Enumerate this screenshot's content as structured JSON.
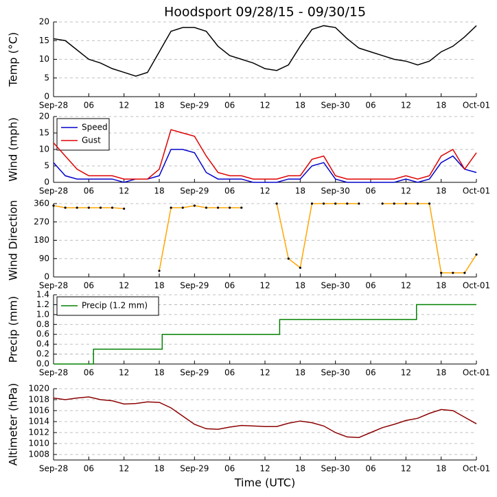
{
  "chart_data": [
    {
      "type": "line",
      "title": "Hoodsport 09/28/15 - 09/30/15",
      "ylabel": "Temp (°C)",
      "x": [
        0,
        2,
        4,
        6,
        8,
        10,
        12,
        14,
        16,
        18,
        20,
        22,
        24,
        26,
        28,
        30,
        32,
        34,
        36,
        38,
        40,
        42,
        44,
        46,
        48,
        50,
        52,
        54,
        56,
        58,
        60,
        62,
        64,
        66,
        68,
        70,
        72
      ],
      "xlim": [
        0,
        72
      ],
      "xticks": [
        {
          "value": 0,
          "label": "Sep-28"
        },
        {
          "value": 6,
          "label": "06"
        },
        12,
        18,
        {
          "value": 24,
          "label": "Sep-29"
        },
        {
          "value": 30,
          "label": "06"
        },
        {
          "value": 36,
          "label": "12"
        },
        {
          "value": 42,
          "label": "18"
        },
        {
          "value": 48,
          "label": "Sep-30"
        },
        {
          "value": 54,
          "label": "06"
        },
        {
          "value": 60,
          "label": "12"
        },
        {
          "value": 66,
          "label": "18"
        },
        {
          "value": 72,
          "label": "Oct-01"
        }
      ],
      "ylim": [
        0,
        20
      ],
      "yticks": [
        0,
        5,
        10,
        15,
        20
      ],
      "grid": true,
      "series": [
        {
          "name": "Temp",
          "color": "#000000",
          "values": [
            15.5,
            15,
            12.5,
            10,
            9,
            7.5,
            6.5,
            5.5,
            6.5,
            12,
            17.5,
            18.5,
            18.5,
            17.5,
            13.5,
            11,
            10,
            9,
            7.5,
            7,
            8.5,
            13.5,
            18,
            19,
            18.5,
            15.5,
            13,
            12,
            11,
            10,
            9.5,
            8.5,
            9.5,
            12,
            13.5,
            16,
            19
          ]
        }
      ]
    },
    {
      "type": "line",
      "ylabel": "Wind (mph)",
      "legend": "upper left",
      "x": [
        0,
        2,
        4,
        6,
        8,
        10,
        12,
        14,
        16,
        18,
        20,
        22,
        24,
        26,
        28,
        30,
        32,
        34,
        36,
        38,
        40,
        42,
        44,
        46,
        48,
        50,
        52,
        54,
        56,
        58,
        60,
        62,
        64,
        66,
        68,
        70,
        72
      ],
      "xlim": [
        0,
        72
      ],
      "xticks": [
        {
          "value": 0,
          "label": "Sep-28"
        },
        {
          "value": 6,
          "label": "06"
        },
        12,
        18,
        {
          "value": 24,
          "label": "Sep-29"
        },
        {
          "value": 30,
          "label": "06"
        },
        {
          "value": 36,
          "label": "12"
        },
        {
          "value": 42,
          "label": "18"
        },
        {
          "value": 48,
          "label": "Sep-30"
        },
        {
          "value": 54,
          "label": "06"
        },
        {
          "value": 60,
          "label": "12"
        },
        {
          "value": 66,
          "label": "18"
        },
        {
          "value": 72,
          "label": "Oct-01"
        }
      ],
      "ylim": [
        0,
        20
      ],
      "yticks": [
        0,
        5,
        10,
        15,
        20
      ],
      "grid": true,
      "series": [
        {
          "name": "Speed",
          "color": "#0000cc",
          "values": [
            6,
            2,
            1,
            1,
            1,
            1,
            0,
            1,
            1,
            2,
            10,
            10,
            9,
            3,
            1,
            1,
            1,
            0,
            0,
            0,
            1,
            1,
            5,
            6,
            1,
            0,
            0,
            0,
            0,
            0,
            1,
            0,
            1,
            6,
            8,
            4,
            3
          ]
        },
        {
          "name": "Gust",
          "color": "#dd0000",
          "values": [
            12,
            8,
            4,
            2,
            2,
            2,
            1,
            1,
            1,
            4,
            16,
            15,
            14,
            8,
            3,
            2,
            2,
            1,
            1,
            1,
            2,
            2,
            7,
            8,
            2,
            1,
            1,
            1,
            1,
            1,
            2,
            1,
            2,
            8,
            10,
            4,
            9
          ]
        }
      ]
    },
    {
      "type": "line",
      "ylabel": "Wind Direction",
      "x": [
        0,
        2,
        4,
        6,
        8,
        10,
        12,
        14,
        16,
        18,
        20,
        22,
        24,
        26,
        28,
        30,
        32,
        34,
        36,
        38,
        40,
        42,
        44,
        46,
        48,
        50,
        52,
        54,
        56,
        58,
        60,
        62,
        64,
        66,
        68,
        70,
        72
      ],
      "xlim": [
        0,
        72
      ],
      "xticks": [
        {
          "value": 0,
          "label": "Sep-28"
        },
        {
          "value": 6,
          "label": "06"
        },
        12,
        18,
        {
          "value": 24,
          "label": "Sep-29"
        },
        {
          "value": 30,
          "label": "06"
        },
        {
          "value": 36,
          "label": "12"
        },
        {
          "value": 42,
          "label": "18"
        },
        {
          "value": 48,
          "label": "Sep-30"
        },
        {
          "value": 54,
          "label": "06"
        },
        {
          "value": 60,
          "label": "12"
        },
        {
          "value": 66,
          "label": "18"
        },
        {
          "value": 72,
          "label": "Oct-01"
        }
      ],
      "ylim": [
        0,
        360
      ],
      "yticks": [
        0,
        90,
        180,
        270,
        360
      ],
      "grid": true,
      "series": [
        {
          "name": "Direction",
          "color": "#ffa500",
          "marker_color": "#000000",
          "values": [
            350,
            340,
            340,
            340,
            340,
            340,
            335,
            null,
            null,
            30,
            340,
            340,
            350,
            340,
            340,
            340,
            340,
            null,
            null,
            360,
            90,
            45,
            360,
            360,
            360,
            360,
            360,
            null,
            360,
            360,
            360,
            360,
            360,
            20,
            20,
            20,
            110
          ]
        }
      ]
    },
    {
      "type": "line",
      "ylabel": "Precip (mm)",
      "legend": "upper left",
      "x": [
        0,
        6.8,
        6.8,
        18.5,
        18.5,
        38.5,
        38.5,
        61.8,
        61.8,
        72
      ],
      "xlim": [
        0,
        72
      ],
      "xticks": [
        {
          "value": 0,
          "label": "Sep-28"
        },
        {
          "value": 6,
          "label": "06"
        },
        12,
        18,
        {
          "value": 24,
          "label": "Sep-29"
        },
        {
          "value": 30,
          "label": "06"
        },
        {
          "value": 36,
          "label": "12"
        },
        {
          "value": 42,
          "label": "18"
        },
        {
          "value": 48,
          "label": "Sep-30"
        },
        {
          "value": 54,
          "label": "06"
        },
        {
          "value": 60,
          "label": "12"
        },
        {
          "value": 66,
          "label": "18"
        },
        {
          "value": 72,
          "label": "Oct-01"
        }
      ],
      "ylim": [
        0,
        1.4
      ],
      "yticks": [
        {
          "value": 0,
          "label": "0.0"
        },
        0.2,
        0.4,
        0.6,
        0.8,
        {
          "value": 1,
          "label": "1.0"
        },
        1.2,
        1.4
      ],
      "grid": true,
      "series": [
        {
          "name": "Precip (1.2 mm)",
          "color": "#008000",
          "values": [
            0,
            0,
            0.3,
            0.3,
            0.6,
            0.6,
            0.9,
            0.9,
            1.2,
            1.2
          ]
        }
      ]
    },
    {
      "type": "line",
      "ylabel": "Altimeter (hPa)",
      "xlabel": "Time (UTC)",
      "x": [
        0,
        2,
        4,
        6,
        8,
        10,
        12,
        14,
        16,
        18,
        20,
        22,
        24,
        26,
        28,
        30,
        32,
        34,
        36,
        38,
        40,
        42,
        44,
        46,
        48,
        50,
        52,
        54,
        56,
        58,
        60,
        62,
        64,
        66,
        68,
        70,
        72
      ],
      "xlim": [
        0,
        72
      ],
      "xticks": [
        {
          "value": 0,
          "label": "Sep-28"
        },
        {
          "value": 6,
          "label": "06"
        },
        12,
        18,
        {
          "value": 24,
          "label": "Sep-29"
        },
        {
          "value": 30,
          "label": "06"
        },
        {
          "value": 36,
          "label": "12"
        },
        {
          "value": 42,
          "label": "18"
        },
        {
          "value": 48,
          "label": "Sep-30"
        },
        {
          "value": 54,
          "label": "06"
        },
        {
          "value": 60,
          "label": "12"
        },
        {
          "value": 66,
          "label": "18"
        },
        {
          "value": 72,
          "label": "Oct-01"
        }
      ],
      "ylim": [
        1007,
        1020
      ],
      "yticks": [
        1008,
        1010,
        1012,
        1014,
        1016,
        1018,
        1020
      ],
      "grid": true,
      "series": [
        {
          "name": "Altimeter",
          "color": "#8b0000",
          "values": [
            1018.3,
            1018,
            1018.3,
            1018.5,
            1018,
            1017.8,
            1017.2,
            1017.3,
            1017.6,
            1017.5,
            1016.5,
            1015,
            1013.5,
            1012.7,
            1012.6,
            1013,
            1013.3,
            1013.2,
            1013.1,
            1013.1,
            1013.7,
            1014.1,
            1013.8,
            1013.2,
            1012,
            1011.2,
            1011.1,
            1012,
            1012.9,
            1013.5,
            1014.2,
            1014.6,
            1015.5,
            1016.2,
            1016,
            1014.8,
            1013.6
          ]
        }
      ]
    }
  ]
}
